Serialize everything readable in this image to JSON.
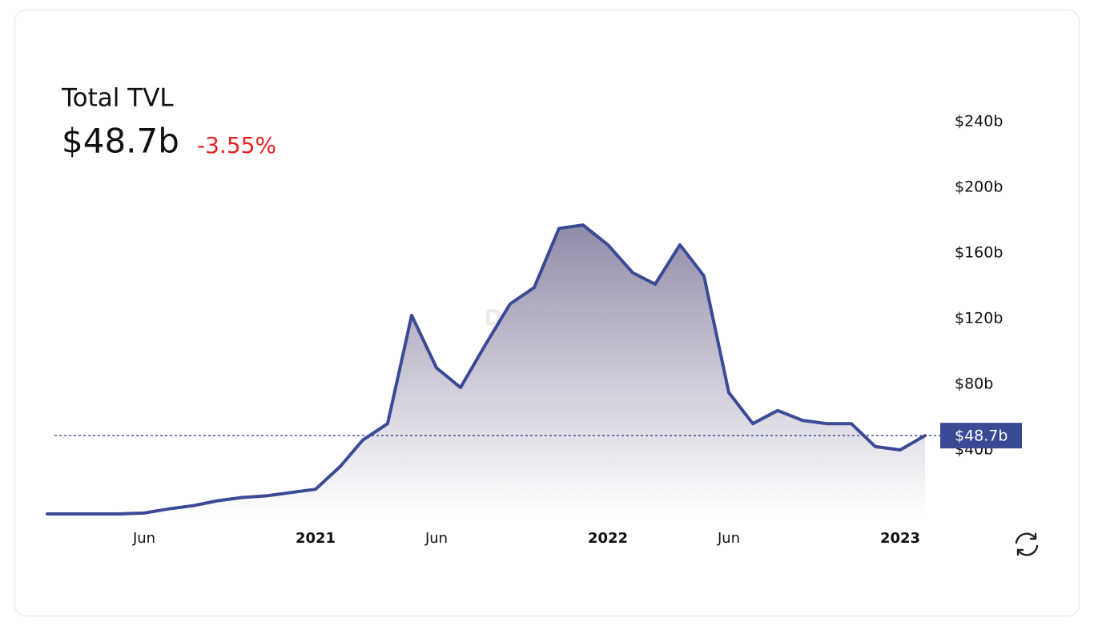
{
  "chart_data": {
    "type": "area",
    "title": "Total TVL",
    "current_label": "$48.7b",
    "change": "-3.55%",
    "watermark": "DefiLlama",
    "x": [
      "2020-02",
      "2020-03",
      "2020-04",
      "2020-05",
      "2020-06",
      "2020-07",
      "2020-08",
      "2020-09",
      "2020-10",
      "2020-11",
      "2020-12",
      "2021-01",
      "2021-02",
      "2021-03",
      "2021-04",
      "2021-05",
      "2021-06",
      "2021-07",
      "2021-08",
      "2021-09",
      "2021-10",
      "2021-11",
      "2021-12",
      "2022-01",
      "2022-02",
      "2022-03",
      "2022-04",
      "2022-05",
      "2022-06",
      "2022-07",
      "2022-08",
      "2022-09",
      "2022-10",
      "2022-11",
      "2022-12",
      "2023-01",
      "2023-02"
    ],
    "series": [
      {
        "name": "Total TVL",
        "color": "#3a4a95",
        "values": [
          1,
          1,
          1,
          1,
          1.5,
          4,
          6,
          9,
          11,
          12,
          14,
          16,
          30,
          46,
          56,
          122,
          90,
          78,
          104,
          129,
          139,
          175,
          177,
          165,
          148,
          141,
          165,
          146,
          75,
          56,
          64,
          58,
          56,
          56,
          42,
          40,
          48.7
        ]
      }
    ],
    "ylim": [
      0,
      260
    ],
    "yticks": [
      {
        "value": 40,
        "label": "$40b"
      },
      {
        "value": 80,
        "label": "$80b"
      },
      {
        "value": 120,
        "label": "$120b"
      },
      {
        "value": 160,
        "label": "$160b"
      },
      {
        "value": 200,
        "label": "$200b"
      },
      {
        "value": 240,
        "label": "$240b"
      }
    ],
    "xticks": [
      {
        "value": "2020-06",
        "label": "Jun"
      },
      {
        "value": "2021-01",
        "label": "2021"
      },
      {
        "value": "2021-06",
        "label": "Jun"
      },
      {
        "value": "2022-01",
        "label": "2022"
      },
      {
        "value": "2022-06",
        "label": "Jun"
      },
      {
        "value": "2023-01",
        "label": "2023"
      }
    ],
    "grid": false
  }
}
